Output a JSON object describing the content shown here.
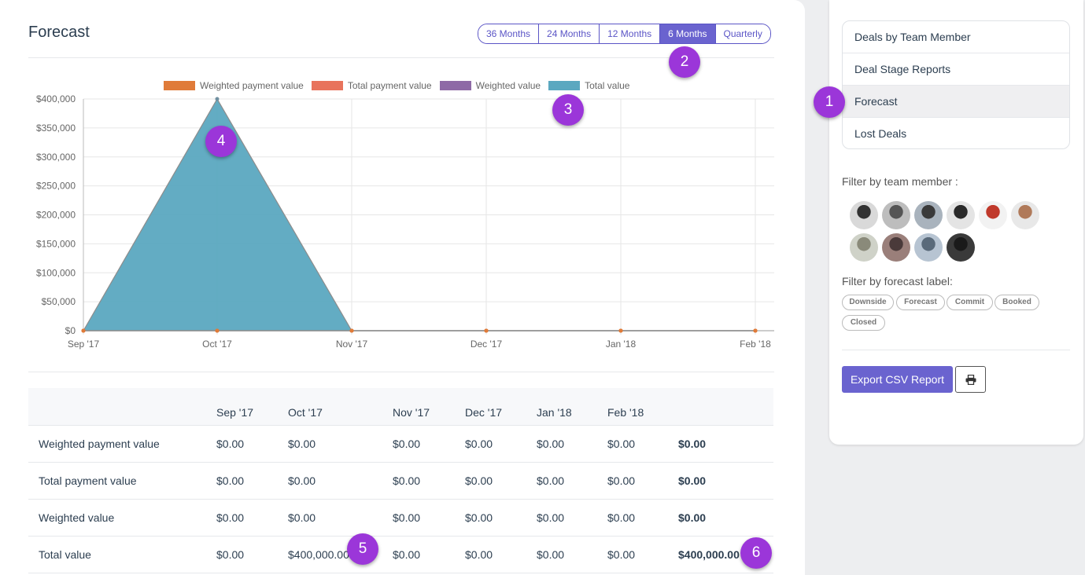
{
  "header": {
    "title": "Forecast"
  },
  "range_buttons": [
    "36 Months",
    "24 Months",
    "12 Months",
    "6 Months",
    "Quarterly"
  ],
  "active_range": "6 Months",
  "chart_data": {
    "type": "area",
    "categories": [
      "Sep '17",
      "Oct '17",
      "Nov '17",
      "Dec '17",
      "Jan '18",
      "Feb '18"
    ],
    "series": [
      {
        "name": "Weighted payment value",
        "color": "#e07b39",
        "values": [
          0,
          0,
          0,
          0,
          0,
          0
        ]
      },
      {
        "name": "Total payment value",
        "color": "#e8735c",
        "values": [
          0,
          0,
          0,
          0,
          0,
          0
        ]
      },
      {
        "name": "Weighted value",
        "color": "#8e6aa6",
        "values": [
          0,
          0,
          0,
          0,
          0,
          0
        ]
      },
      {
        "name": "Total value",
        "color": "#5ba8c0",
        "values": [
          0,
          400000,
          0,
          0,
          0,
          0
        ]
      }
    ],
    "y_ticks": [
      "$0",
      "$50,000",
      "$100,000",
      "$150,000",
      "$200,000",
      "$250,000",
      "$300,000",
      "$350,000",
      "$400,000"
    ],
    "ylim": [
      0,
      400000
    ],
    "grid": true,
    "legend_position": "top"
  },
  "table": {
    "columns": [
      "",
      "Sep '17",
      "Oct '17",
      "Nov '17",
      "Dec '17",
      "Jan '18",
      "Feb '18",
      ""
    ],
    "rows": [
      {
        "label": "Weighted payment value",
        "cells": [
          "$0.00",
          "$0.00",
          "$0.00",
          "$0.00",
          "$0.00",
          "$0.00"
        ],
        "total": "$0.00"
      },
      {
        "label": "Total payment value",
        "cells": [
          "$0.00",
          "$0.00",
          "$0.00",
          "$0.00",
          "$0.00",
          "$0.00"
        ],
        "total": "$0.00"
      },
      {
        "label": "Weighted value",
        "cells": [
          "$0.00",
          "$0.00",
          "$0.00",
          "$0.00",
          "$0.00",
          "$0.00"
        ],
        "total": "$0.00"
      },
      {
        "label": "Total value",
        "cells": [
          "$0.00",
          "$400,000.00",
          "$0.00",
          "$0.00",
          "$0.00",
          "$0.00"
        ],
        "total": "$400,000.00"
      }
    ]
  },
  "sidebar": {
    "menu": [
      "Deals by Team Member",
      "Deal Stage Reports",
      "Forecast",
      "Lost Deals"
    ],
    "active_menu": "Forecast",
    "team_filter_label": "Filter by team member :",
    "avatar_count": 10,
    "forecast_filter_label": "Filter by forecast label:",
    "forecast_tags": [
      "Downside",
      "Forecast",
      "Commit",
      "Booked",
      "Closed"
    ],
    "export_label": "Export CSV Report",
    "print_icon": "print-icon"
  },
  "markers": [
    "1",
    "2",
    "3",
    "4",
    "5",
    "6"
  ],
  "colors": {
    "accent": "#6a63cf",
    "marker": "#9b36d9"
  }
}
